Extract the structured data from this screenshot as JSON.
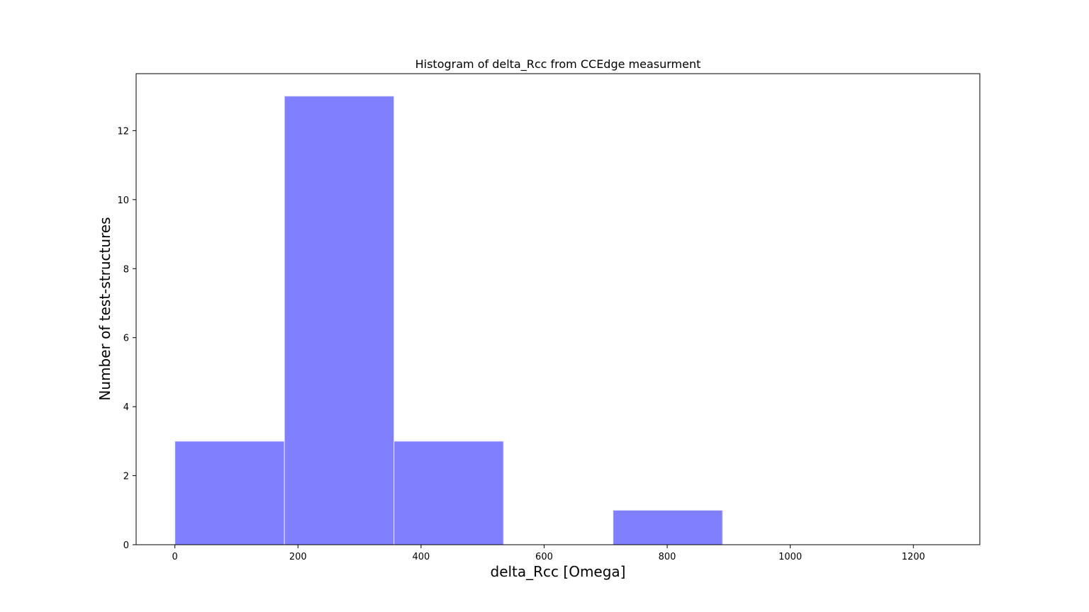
{
  "chart_data": {
    "type": "bar",
    "title": "Histogram of delta_Rcc from CCEdge measurment",
    "xlabel": "delta_Rcc [Omega]",
    "ylabel": "Number of test-structures",
    "bins": [
      {
        "start": 0,
        "end": 178,
        "count": 3
      },
      {
        "start": 178,
        "end": 356,
        "count": 13
      },
      {
        "start": 356,
        "end": 534,
        "count": 3
      },
      {
        "start": 534,
        "end": 712,
        "count": 0
      },
      {
        "start": 712,
        "end": 890,
        "count": 1
      },
      {
        "start": 890,
        "end": 1068,
        "count": 0
      },
      {
        "start": 1068,
        "end": 1246,
        "count": 0
      }
    ],
    "xlim": [
      -63,
      1308
    ],
    "ylim": [
      0,
      13.65
    ],
    "xticks": [
      0,
      200,
      400,
      600,
      800,
      1000,
      1200
    ],
    "yticks": [
      0,
      2,
      4,
      6,
      8,
      10,
      12
    ],
    "bar_color": "#8080ff",
    "bar_edge_color": "#e8e8ff",
    "grid": false
  }
}
